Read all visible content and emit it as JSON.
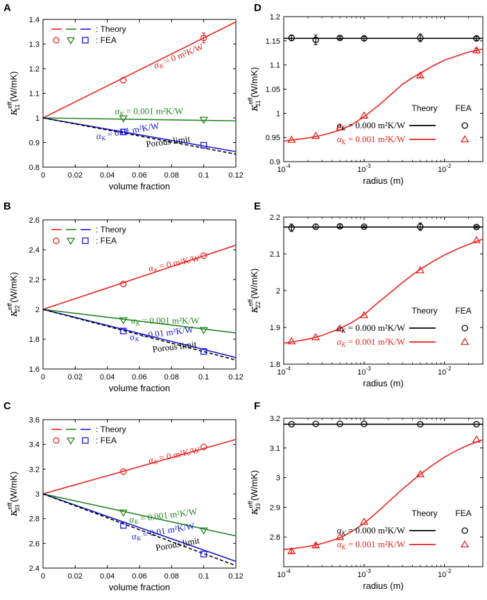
{
  "colors": {
    "red": "#e8211b",
    "green": "#22851d",
    "blue": "#1716d8",
    "black": "#000000"
  },
  "chart_data": [
    {
      "id": "A",
      "type": "line",
      "panel_label": "A",
      "xlabel": "volume fraction",
      "ylabel_base": "κ",
      "ylabel_sup": "eff",
      "ylabel_sub": "11",
      "ylabel_unit": "(W/mK)",
      "xlim": [
        0,
        0.12
      ],
      "ylim": [
        0.8,
        1.4
      ],
      "xticks": [
        0,
        0.02,
        0.04,
        0.06,
        0.08,
        0.1,
        0.12
      ],
      "xtick_labels": [
        "0",
        "0.02",
        "0.04",
        "0.06",
        "0.08",
        "0.1",
        "0.12"
      ],
      "yticks": [
        0.8,
        0.9,
        1,
        1.1,
        1.2,
        1.3,
        1.4
      ],
      "ytick_labels": [
        "0.8",
        "0.9",
        "1",
        "1.1",
        "1.2",
        "1.3",
        "1.4"
      ],
      "legend": {
        "theory_label": ": Theory",
        "fea_label": ": FEA"
      },
      "series": [
        {
          "name": "α_K = 0 m²K/W",
          "color": "red",
          "marker": "circle",
          "x": [
            0,
            0.12
          ],
          "y": [
            1.0,
            1.39
          ],
          "fea_x": [
            0.05,
            0.1
          ],
          "fea_y": [
            1.153,
            1.325
          ],
          "fea_err": [
            0,
            0.02
          ],
          "ann_var": "α",
          "ann_sub": "K",
          "ann_rest": " = 0 m²K/W",
          "ann_at": [
            0.085,
            1.24
          ],
          "ann_angle": -22
        },
        {
          "name": "α_K = 0.001 m²K/W",
          "color": "green",
          "marker": "tri_down",
          "x": [
            0,
            0.12
          ],
          "y": [
            1.0,
            0.988
          ],
          "fea_x": [
            0.05,
            0.1
          ],
          "fea_y": [
            0.998,
            0.993
          ],
          "fea_err": [
            0,
            0
          ],
          "ann_var": "α",
          "ann_sub": "K",
          "ann_rest": " = 0.001 m²K/W",
          "ann_at": [
            0.066,
            1.015
          ],
          "ann_angle": 0
        },
        {
          "name": "α_K = 0.01 m²K/W",
          "color": "blue",
          "marker": "square",
          "x": [
            0,
            0.12
          ],
          "y": [
            1.0,
            0.863
          ],
          "fea_x": [
            0.05,
            0.1
          ],
          "fea_y": [
            0.943,
            0.889
          ],
          "fea_err": [
            0,
            0
          ],
          "ann_var": "α",
          "ann_sub": "K",
          "ann_rest": " = 0.01 m²K/W",
          "ann_at": [
            0.053,
            0.935
          ],
          "ann_angle": -10
        },
        {
          "name": "Porous limit",
          "color": "black",
          "dashed": true,
          "x": [
            0,
            0.12
          ],
          "y": [
            1.0,
            0.853
          ],
          "ann_text": "Porous limit",
          "ann_at": [
            0.078,
            0.892
          ],
          "ann_angle": -7
        }
      ]
    },
    {
      "id": "B",
      "type": "line",
      "panel_label": "B",
      "xlabel": "volume fraction",
      "ylabel_base": "κ",
      "ylabel_sup": "eff",
      "ylabel_sub": "22",
      "ylabel_unit": "(W/mK)",
      "xlim": [
        0,
        0.12
      ],
      "ylim": [
        1.6,
        2.6
      ],
      "xticks": [
        0,
        0.02,
        0.04,
        0.06,
        0.08,
        0.1,
        0.12
      ],
      "xtick_labels": [
        "0",
        "0.02",
        "0.04",
        "0.06",
        "0.08",
        "0.1",
        "0.12"
      ],
      "yticks": [
        1.6,
        1.8,
        2,
        2.2,
        2.4,
        2.6
      ],
      "ytick_labels": [
        "1.6",
        "1.8",
        "2",
        "2.2",
        "2.4",
        "2.6"
      ],
      "legend": {
        "theory_label": ": Theory",
        "fea_label": ": FEA"
      },
      "series": [
        {
          "name": "α_K = 0 m²K/W",
          "color": "red",
          "marker": "circle",
          "x": [
            0,
            0.12
          ],
          "y": [
            2.0,
            2.43
          ],
          "fea_x": [
            0.05,
            0.1
          ],
          "fea_y": [
            2.17,
            2.36
          ],
          "fea_err": [
            0,
            0
          ],
          "ann_var": "α",
          "ann_sub": "K",
          "ann_rest": " = 0 m²K/W",
          "ann_at": [
            0.082,
            2.29
          ],
          "ann_angle": -12
        },
        {
          "name": "α_K = 0.001 m²K/W",
          "color": "green",
          "marker": "tri_down",
          "x": [
            0,
            0.12
          ],
          "y": [
            2.0,
            1.842
          ],
          "fea_x": [
            0.05,
            0.1
          ],
          "fea_y": [
            1.928,
            1.862
          ],
          "fea_err": [
            0,
            0
          ],
          "ann_var": "α",
          "ann_sub": "K",
          "ann_rest": " = 0.001 m²K/W",
          "ann_at": [
            0.076,
            1.905
          ],
          "ann_angle": 0
        },
        {
          "name": "α_K = 0.01 m²K/W",
          "color": "blue",
          "marker": "square",
          "x": [
            0,
            0.12
          ],
          "y": [
            2.0,
            1.677
          ],
          "fea_x": [
            0.05,
            0.1
          ],
          "fea_y": [
            1.855,
            1.718
          ],
          "fea_err": [
            0,
            0
          ],
          "ann_var": "α",
          "ann_sub": "K",
          "ann_rest": " = 0.01 m²K/W",
          "ann_at": [
            0.074,
            1.82
          ],
          "ann_angle": -7
        },
        {
          "name": "Porous limit",
          "color": "black",
          "dashed": true,
          "x": [
            0,
            0.12
          ],
          "y": [
            2.0,
            1.66
          ],
          "ann_text": "Porous limit",
          "ann_at": [
            0.082,
            1.73
          ],
          "ann_angle": -7
        }
      ]
    },
    {
      "id": "C",
      "type": "line",
      "panel_label": "C",
      "xlabel": "volume fraction",
      "ylabel_base": "κ",
      "ylabel_sup": "eff",
      "ylabel_sub": "33",
      "ylabel_unit": "(W/mK)",
      "xlim": [
        0,
        0.12
      ],
      "ylim": [
        2.4,
        3.6
      ],
      "xticks": [
        0,
        0.02,
        0.04,
        0.06,
        0.08,
        0.1,
        0.12
      ],
      "xtick_labels": [
        "0",
        "0.02",
        "0.04",
        "0.06",
        "0.08",
        "0.1",
        "0.12"
      ],
      "yticks": [
        2.4,
        2.6,
        2.8,
        3,
        3.2,
        3.4,
        3.6
      ],
      "ytick_labels": [
        "2.4",
        "2.6",
        "2.8",
        "3",
        "3.2",
        "3.4",
        "3.6"
      ],
      "legend": {
        "theory_label": ": Theory",
        "fea_label": ": FEA"
      },
      "series": [
        {
          "name": "α_K = 0 m²K/W",
          "color": "red",
          "marker": "circle",
          "x": [
            0,
            0.12
          ],
          "y": [
            3.0,
            3.44
          ],
          "fea_x": [
            0.05,
            0.1
          ],
          "fea_y": [
            3.18,
            3.38
          ],
          "fea_err": [
            0,
            0
          ],
          "ann_var": "α",
          "ann_sub": "K",
          "ann_rest": " = 0 m²K/W",
          "ann_at": [
            0.082,
            3.29
          ],
          "ann_angle": -12
        },
        {
          "name": "α_K = 0.001 m²K/W",
          "color": "green",
          "marker": "tri_down",
          "x": [
            0,
            0.12
          ],
          "y": [
            3.0,
            2.66
          ],
          "fea_x": [
            0.05,
            0.1
          ],
          "fea_y": [
            2.85,
            2.705
          ],
          "fea_err": [
            0,
            0
          ],
          "ann_var": "α",
          "ann_sub": "K",
          "ann_rest": " = 0.001 m²K/W",
          "ann_at": [
            0.075,
            2.8
          ],
          "ann_angle": -7
        },
        {
          "name": "α_K = 0.01 m²K/W",
          "color": "blue",
          "marker": "square",
          "x": [
            0,
            0.12
          ],
          "y": [
            3.0,
            2.455
          ],
          "fea_x": [
            0.05,
            0.1
          ],
          "fea_y": [
            2.745,
            2.513
          ],
          "fea_err": [
            0,
            0
          ],
          "ann_var": "α",
          "ann_sub": "K",
          "ann_rest": " = 0.01 m²K/W",
          "ann_at": [
            0.075,
            2.675
          ],
          "ann_angle": -10
        },
        {
          "name": "Porous limit",
          "color": "black",
          "dashed": true,
          "x": [
            0,
            0.12
          ],
          "y": [
            3.0,
            2.42
          ],
          "ann_text": "Porous limit",
          "ann_at": [
            0.084,
            2.57
          ],
          "ann_angle": -10
        }
      ]
    },
    {
      "id": "D",
      "type": "line",
      "panel_label": "D",
      "xlabel": "radius (m)",
      "xscale": "log",
      "ylabel_base": "κ",
      "ylabel_sup": "eff",
      "ylabel_sub": "11",
      "ylabel_unit": "(W/mK)",
      "xlim": [
        0.0001,
        0.03
      ],
      "ylim": [
        0.9,
        1.2
      ],
      "xticks": [
        0.0001,
        0.001,
        0.01
      ],
      "xtick_labels": [
        "10",
        "10",
        "10"
      ],
      "xtick_exps": [
        "-4",
        "-3",
        "-2"
      ],
      "yticks": [
        0.9,
        0.95,
        1,
        1.05,
        1.1,
        1.15,
        1.2
      ],
      "ytick_labels": [
        "0.9",
        "0.95",
        "1",
        "1.05",
        "1.1",
        "1.15",
        "1.2"
      ],
      "legend": {
        "theory_label": "Theory",
        "fea_label": "FEA"
      },
      "series": [
        {
          "name": "α_K = 0.000 m²K/W",
          "color": "black",
          "marker": "circle",
          "x": [
            0.0001,
            0.03
          ],
          "y": [
            1.155,
            1.155
          ],
          "fea_x": [
            0.000125,
            0.00025,
            0.0005,
            0.001,
            0.005,
            0.025
          ],
          "fea_y": [
            1.156,
            1.152,
            1.156,
            1.155,
            1.156,
            1.155
          ],
          "fea_err": [
            0.006,
            0.01,
            0.003,
            0.004,
            0.008,
            0.004
          ],
          "leg_var": "α",
          "leg_sub": "K",
          "leg_rest": " = 0.000 m²K/W"
        },
        {
          "name": "α_K = 0.001 m²K/W",
          "color": "red",
          "marker": "triangle",
          "x": [
            0.0001,
            0.00014,
            0.0002,
            0.0003,
            0.0005,
            0.0007,
            0.001,
            0.0015,
            0.002,
            0.003,
            0.004,
            0.005,
            0.007,
            0.01,
            0.015,
            0.02,
            0.025,
            0.03
          ],
          "y": [
            0.9425,
            0.9455,
            0.949,
            0.9545,
            0.965,
            0.976,
            0.993,
            1.016,
            1.034,
            1.06,
            1.074,
            1.083,
            1.097,
            1.11,
            1.12,
            1.127,
            1.13,
            1.133
          ],
          "fea_x": [
            0.000125,
            0.00025,
            0.0005,
            0.001,
            0.005,
            0.025
          ],
          "fea_y": [
            0.945,
            0.953,
            0.971,
            0.995,
            1.078,
            1.13
          ],
          "fea_err": [
            0,
            0,
            0,
            0,
            0.004,
            0.005
          ],
          "leg_var": "α",
          "leg_sub": "K",
          "leg_rest": " = 0.001 m²K/W"
        }
      ]
    },
    {
      "id": "E",
      "type": "line",
      "panel_label": "E",
      "xlabel": "radius (m)",
      "xscale": "log",
      "ylabel_base": "κ",
      "ylabel_sup": "eff",
      "ylabel_sub": "22",
      "ylabel_unit": "(W/mK)",
      "xlim": [
        0.0001,
        0.03
      ],
      "ylim": [
        1.8,
        2.2
      ],
      "xticks": [
        0.0001,
        0.001,
        0.01
      ],
      "xtick_labels": [
        "10",
        "10",
        "10"
      ],
      "xtick_exps": [
        "-4",
        "-3",
        "-2"
      ],
      "yticks": [
        1.8,
        1.9,
        2,
        2.1,
        2.2
      ],
      "ytick_labels": [
        "1.8",
        "1.9",
        "2",
        "2.1",
        "2.2"
      ],
      "legend": {
        "theory_label": "Theory",
        "fea_label": "FEA"
      },
      "series": [
        {
          "name": "α_K = 0.000 m²K/W",
          "color": "black",
          "marker": "circle",
          "x": [
            0.0001,
            0.03
          ],
          "y": [
            2.173,
            2.173
          ],
          "fea_x": [
            0.000125,
            0.00025,
            0.0005,
            0.001,
            0.005,
            0.025
          ],
          "fea_y": [
            2.171,
            2.174,
            2.175,
            2.174,
            2.174,
            2.173
          ],
          "fea_err": [
            0.01,
            0.007,
            0.004,
            0.003,
            0.01,
            0.003
          ],
          "leg_var": "α",
          "leg_sub": "K",
          "leg_rest": " = 0.000 m²K/W"
        },
        {
          "name": "α_K = 0.001 m²K/W",
          "color": "red",
          "marker": "triangle",
          "x": [
            0.0001,
            0.00014,
            0.0002,
            0.0003,
            0.0005,
            0.0007,
            0.001,
            0.0015,
            0.002,
            0.003,
            0.004,
            0.005,
            0.007,
            0.01,
            0.015,
            0.02,
            0.025,
            0.03
          ],
          "y": [
            1.857,
            1.862,
            1.868,
            1.878,
            1.897,
            1.913,
            1.935,
            1.968,
            1.99,
            2.022,
            2.043,
            2.058,
            2.078,
            2.097,
            2.115,
            2.126,
            2.134,
            2.14
          ],
          "fea_x": [
            0.000125,
            0.00025,
            0.0005,
            0.001,
            0.005,
            0.025
          ],
          "fea_y": [
            1.862,
            1.873,
            1.897,
            1.933,
            2.055,
            2.137
          ],
          "fea_err": [
            0,
            0,
            0,
            0,
            0,
            0
          ],
          "leg_var": "α",
          "leg_sub": "K",
          "leg_rest": " = 0.001 m²K/W"
        }
      ]
    },
    {
      "id": "F",
      "type": "line",
      "panel_label": "F",
      "xlabel": "radius (m)",
      "xscale": "log",
      "ylabel_base": "κ",
      "ylabel_sup": "eff",
      "ylabel_sub": "33",
      "ylabel_unit": "(W/mK)",
      "xlim": [
        0.0001,
        0.03
      ],
      "ylim": [
        2.7,
        3.2
      ],
      "xticks": [
        0.0001,
        0.001,
        0.01
      ],
      "xtick_labels": [
        "10",
        "10",
        "10"
      ],
      "xtick_exps": [
        "-4",
        "-3",
        "-2"
      ],
      "yticks": [
        2.8,
        2.9,
        3,
        3.1,
        3.2
      ],
      "ytick_labels": [
        "2.8",
        "2.9",
        "3",
        "3.1",
        "3.2"
      ],
      "legend": {
        "theory_label": "Theory",
        "fea_label": "FEA"
      },
      "series": [
        {
          "name": "α_K = 0.000 m²K/W",
          "color": "black",
          "marker": "circle",
          "x": [
            0.0001,
            0.03
          ],
          "y": [
            3.18,
            3.18
          ],
          "fea_x": [
            0.000125,
            0.00025,
            0.0005,
            0.001,
            0.005,
            0.025
          ],
          "fea_y": [
            3.18,
            3.181,
            3.181,
            3.181,
            3.18,
            3.18
          ],
          "fea_err": [
            0,
            0,
            0,
            0,
            0,
            0
          ],
          "leg_var": "α",
          "leg_sub": "K",
          "leg_rest": " = 0.000 m²K/W"
        },
        {
          "name": "α_K = 0.001 m²K/W",
          "color": "red",
          "marker": "triangle",
          "x": [
            0.0001,
            0.00014,
            0.0002,
            0.0003,
            0.0005,
            0.0007,
            0.001,
            0.0015,
            0.002,
            0.003,
            0.004,
            0.005,
            0.007,
            0.01,
            0.015,
            0.02,
            0.025,
            0.03
          ],
          "y": [
            2.758,
            2.762,
            2.768,
            2.778,
            2.797,
            2.818,
            2.846,
            2.887,
            2.918,
            2.961,
            2.99,
            3.011,
            3.041,
            3.069,
            3.095,
            3.11,
            3.12,
            3.128
          ],
          "fea_x": [
            0.000125,
            0.00025,
            0.0005,
            0.001,
            0.005,
            0.025
          ],
          "fea_y": [
            2.752,
            2.772,
            2.8,
            2.851,
            3.011,
            3.128
          ],
          "fea_err": [
            0.006,
            0.006,
            0,
            0,
            0,
            0
          ],
          "leg_var": "α",
          "leg_sub": "K",
          "leg_rest": " = 0.001 m²K/W"
        }
      ]
    }
  ]
}
